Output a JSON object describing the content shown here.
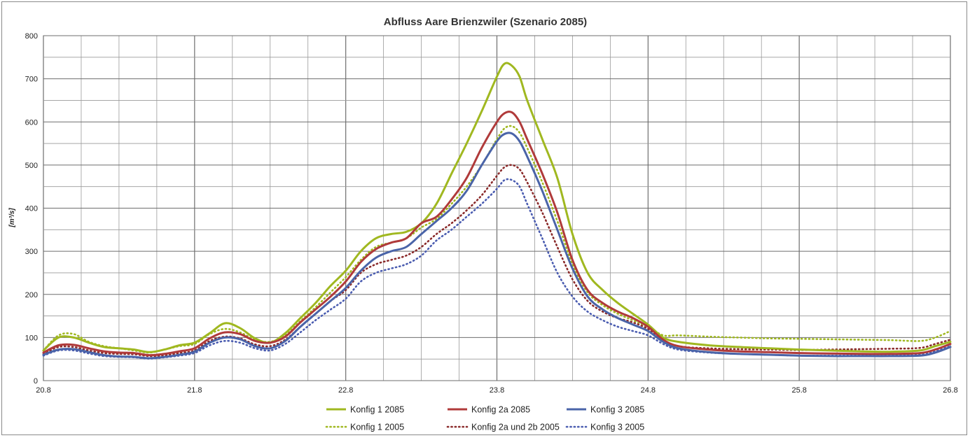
{
  "chart_data": {
    "type": "line",
    "title": "Abfluss Aare Brienzwiler (Szenario 2085)",
    "ylabel": "[m³/s]",
    "xlabel": "",
    "xlim": [
      20.8,
      26.8
    ],
    "ylim": [
      0,
      800
    ],
    "x_ticks": [
      "20.8",
      "21.8",
      "22.8",
      "23.8",
      "24.8",
      "25.8",
      "26.8"
    ],
    "y_ticks": [
      "0",
      "100",
      "200",
      "300",
      "400",
      "500",
      "600",
      "700",
      "800"
    ],
    "grid": true,
    "legend_position": "bottom",
    "series": [
      {
        "name": "Konfig 1 2085",
        "color": "#a0b820",
        "style": "solid",
        "x": [
          20.8,
          20.9,
          21.0,
          21.1,
          21.2,
          21.3,
          21.4,
          21.5,
          21.6,
          21.7,
          21.8,
          21.9,
          22.0,
          22.1,
          22.2,
          22.3,
          22.4,
          22.5,
          22.6,
          22.7,
          22.8,
          22.9,
          23.0,
          23.1,
          23.2,
          23.3,
          23.4,
          23.5,
          23.6,
          23.7,
          23.8,
          23.85,
          23.9,
          23.95,
          24.0,
          24.1,
          24.2,
          24.3,
          24.4,
          24.5,
          24.6,
          24.7,
          24.8,
          24.9,
          25.0,
          25.2,
          25.4,
          25.6,
          25.8,
          26.0,
          26.2,
          26.4,
          26.6,
          26.7,
          26.8
        ],
        "y": [
          70,
          100,
          100,
          88,
          78,
          75,
          72,
          66,
          72,
          82,
          88,
          110,
          133,
          122,
          98,
          88,
          110,
          145,
          180,
          220,
          255,
          300,
          330,
          340,
          345,
          365,
          410,
          480,
          550,
          625,
          705,
          735,
          730,
          705,
          650,
          560,
          470,
          340,
          250,
          210,
          180,
          155,
          130,
          100,
          90,
          82,
          78,
          75,
          72,
          70,
          68,
          67,
          70,
          80,
          90
        ]
      },
      {
        "name": "Konfig 2a 2085",
        "color": "#b03a3a",
        "style": "solid",
        "x": [
          20.8,
          20.9,
          21.0,
          21.1,
          21.2,
          21.3,
          21.4,
          21.5,
          21.6,
          21.7,
          21.8,
          21.9,
          22.0,
          22.1,
          22.2,
          22.3,
          22.4,
          22.5,
          22.6,
          22.7,
          22.8,
          22.9,
          23.0,
          23.1,
          23.2,
          23.3,
          23.4,
          23.5,
          23.6,
          23.7,
          23.8,
          23.85,
          23.9,
          23.95,
          24.0,
          24.1,
          24.2,
          24.3,
          24.4,
          24.5,
          24.6,
          24.7,
          24.8,
          24.9,
          25.0,
          25.2,
          25.4,
          25.6,
          25.8,
          26.0,
          26.2,
          26.4,
          26.6,
          26.7,
          26.8
        ],
        "y": [
          65,
          82,
          83,
          75,
          68,
          65,
          64,
          59,
          62,
          68,
          75,
          98,
          112,
          108,
          92,
          88,
          102,
          135,
          165,
          195,
          230,
          275,
          305,
          320,
          330,
          365,
          380,
          420,
          470,
          540,
          600,
          620,
          622,
          600,
          560,
          480,
          390,
          280,
          210,
          180,
          160,
          145,
          125,
          95,
          80,
          72,
          68,
          66,
          64,
          63,
          62,
          62,
          64,
          72,
          85
        ]
      },
      {
        "name": "Konfig 3 2085",
        "color": "#4a64a8",
        "style": "solid",
        "x": [
          20.8,
          20.9,
          21.0,
          21.1,
          21.2,
          21.3,
          21.4,
          21.5,
          21.6,
          21.7,
          21.8,
          21.9,
          22.0,
          22.1,
          22.2,
          22.3,
          22.4,
          22.5,
          22.6,
          22.7,
          22.8,
          22.9,
          23.0,
          23.1,
          23.2,
          23.3,
          23.4,
          23.5,
          23.6,
          23.7,
          23.8,
          23.85,
          23.9,
          23.95,
          24.0,
          24.1,
          24.2,
          24.3,
          24.4,
          24.5,
          24.6,
          24.7,
          24.8,
          24.9,
          25.0,
          25.2,
          25.4,
          25.6,
          25.8,
          26.0,
          26.2,
          26.4,
          26.6,
          26.7,
          26.8
        ],
        "y": [
          60,
          72,
          73,
          66,
          59,
          56,
          55,
          52,
          55,
          60,
          67,
          88,
          100,
          96,
          80,
          75,
          92,
          125,
          155,
          185,
          215,
          255,
          285,
          300,
          310,
          340,
          370,
          400,
          440,
          500,
          555,
          572,
          573,
          555,
          520,
          440,
          350,
          260,
          195,
          165,
          145,
          130,
          115,
          90,
          75,
          66,
          62,
          60,
          58,
          57,
          57,
          57,
          58,
          65,
          78
        ]
      },
      {
        "name": "Konfig 1 2005",
        "color": "#a0b820",
        "style": "dotted",
        "x": [
          20.8,
          20.9,
          21.0,
          21.1,
          21.2,
          21.3,
          21.4,
          21.5,
          21.6,
          21.7,
          21.8,
          21.9,
          22.0,
          22.1,
          22.2,
          22.3,
          22.4,
          22.5,
          22.6,
          22.7,
          22.8,
          22.9,
          23.0,
          23.1,
          23.2,
          23.3,
          23.4,
          23.5,
          23.6,
          23.7,
          23.8,
          23.85,
          23.9,
          23.95,
          24.0,
          24.1,
          24.2,
          24.3,
          24.4,
          24.5,
          24.6,
          24.7,
          24.8,
          24.9,
          25.0,
          25.2,
          25.4,
          25.6,
          25.8,
          26.0,
          26.2,
          26.4,
          26.6,
          26.7,
          26.8
        ],
        "y": [
          70,
          105,
          108,
          90,
          80,
          75,
          70,
          65,
          72,
          80,
          85,
          108,
          120,
          112,
          95,
          90,
          105,
          138,
          170,
          205,
          240,
          280,
          310,
          320,
          330,
          355,
          375,
          410,
          450,
          500,
          560,
          585,
          590,
          575,
          540,
          460,
          370,
          270,
          205,
          175,
          155,
          140,
          125,
          105,
          105,
          102,
          100,
          98,
          97,
          96,
          95,
          94,
          92,
          100,
          115
        ]
      },
      {
        "name": "Konfig 2a und 2b 2005",
        "color": "#8a2a2a",
        "style": "dotted",
        "x": [
          20.8,
          20.9,
          21.0,
          21.1,
          21.2,
          21.3,
          21.4,
          21.5,
          21.6,
          21.7,
          21.8,
          21.9,
          22.0,
          22.1,
          22.2,
          22.3,
          22.4,
          22.5,
          22.6,
          22.7,
          22.8,
          22.9,
          23.0,
          23.1,
          23.2,
          23.3,
          23.4,
          23.5,
          23.6,
          23.7,
          23.8,
          23.85,
          23.9,
          23.95,
          24.0,
          24.1,
          24.2,
          24.3,
          24.4,
          24.5,
          24.6,
          24.7,
          24.8,
          24.9,
          25.0,
          25.2,
          25.4,
          25.6,
          25.8,
          26.0,
          26.2,
          26.4,
          26.6,
          26.7,
          26.8
        ],
        "y": [
          62,
          78,
          78,
          70,
          64,
          62,
          61,
          57,
          59,
          64,
          70,
          92,
          102,
          98,
          84,
          80,
          95,
          125,
          155,
          185,
          210,
          250,
          270,
          280,
          290,
          310,
          340,
          365,
          395,
          430,
          475,
          495,
          500,
          490,
          460,
          390,
          310,
          235,
          185,
          160,
          145,
          135,
          120,
          95,
          80,
          75,
          73,
          72,
          71,
          72,
          73,
          74,
          76,
          85,
          95
        ]
      },
      {
        "name": "Konfig 3 2005",
        "color": "#4a5cb0",
        "style": "dotted",
        "x": [
          20.8,
          20.9,
          21.0,
          21.1,
          21.2,
          21.3,
          21.4,
          21.5,
          21.6,
          21.7,
          21.8,
          21.9,
          22.0,
          22.1,
          22.2,
          22.3,
          22.4,
          22.5,
          22.6,
          22.7,
          22.8,
          22.9,
          23.0,
          23.1,
          23.2,
          23.3,
          23.4,
          23.5,
          23.6,
          23.7,
          23.8,
          23.85,
          23.9,
          23.95,
          24.0,
          24.1,
          24.2,
          24.3,
          24.4,
          24.5,
          24.6,
          24.7,
          24.8,
          24.9,
          25.0,
          25.2,
          25.4,
          25.6,
          25.8,
          26.0,
          26.2,
          26.4,
          26.6,
          26.7,
          26.8
        ],
        "y": [
          58,
          70,
          70,
          63,
          57,
          55,
          54,
          51,
          54,
          58,
          64,
          82,
          92,
          88,
          75,
          70,
          85,
          112,
          140,
          165,
          190,
          230,
          250,
          260,
          270,
          290,
          325,
          350,
          380,
          410,
          445,
          465,
          465,
          450,
          410,
          330,
          250,
          195,
          160,
          140,
          125,
          115,
          105,
          85,
          72,
          65,
          62,
          60,
          58,
          58,
          58,
          58,
          60,
          68,
          80
        ]
      }
    ]
  }
}
